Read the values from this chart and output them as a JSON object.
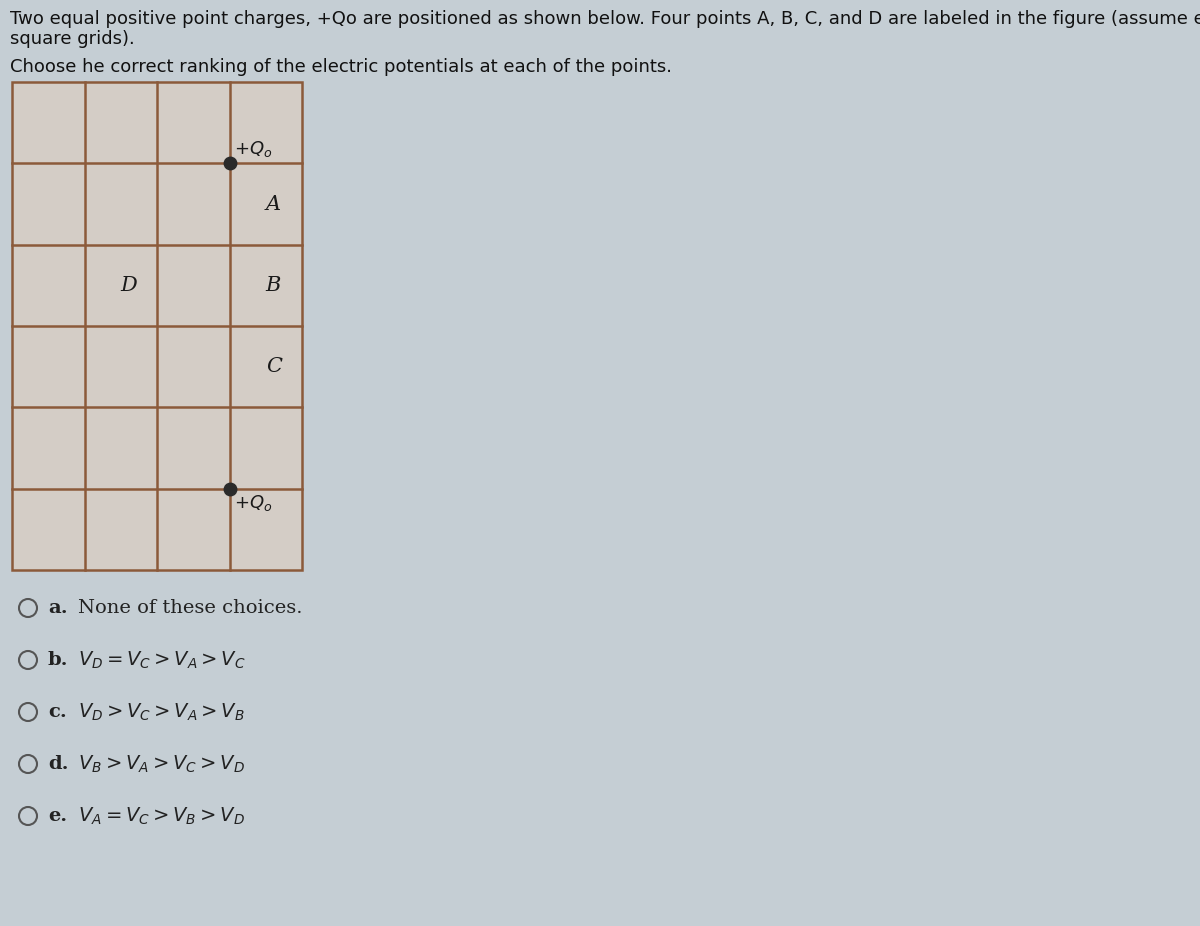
{
  "title_line1": "Two equal positive point charges, +Qo are positioned as shown below. Four points A, B, C, and D are labeled in the figure (assume equal",
  "title_line2": "square grids).",
  "subtitle": "Choose he correct ranking of the electric potentials at each of the points.",
  "bg_color": "#c5ced4",
  "grid_bg_color": "#d4cdc6",
  "grid_color": "#8B5A3A",
  "grid_rows": 6,
  "grid_cols": 4,
  "charge_color": "#2a2a2a",
  "label_color": "#1a1a1a",
  "text_color": "#111111",
  "choice_color": "#222222",
  "choices": [
    {
      "label": "a.",
      "text": "None of these choices.",
      "math": false
    },
    {
      "label": "b.",
      "text": "V_D = V_C > V_A > V_C",
      "math": true
    },
    {
      "label": "c.",
      "text": "V_D > V_C > V_A > V_B",
      "math": true
    },
    {
      "label": "d.",
      "text": "V_B > V_A > V_C > V_D",
      "math": true
    },
    {
      "label": "e.",
      "text": "V_A = V_C > V_B > V_D",
      "math": true
    }
  ]
}
